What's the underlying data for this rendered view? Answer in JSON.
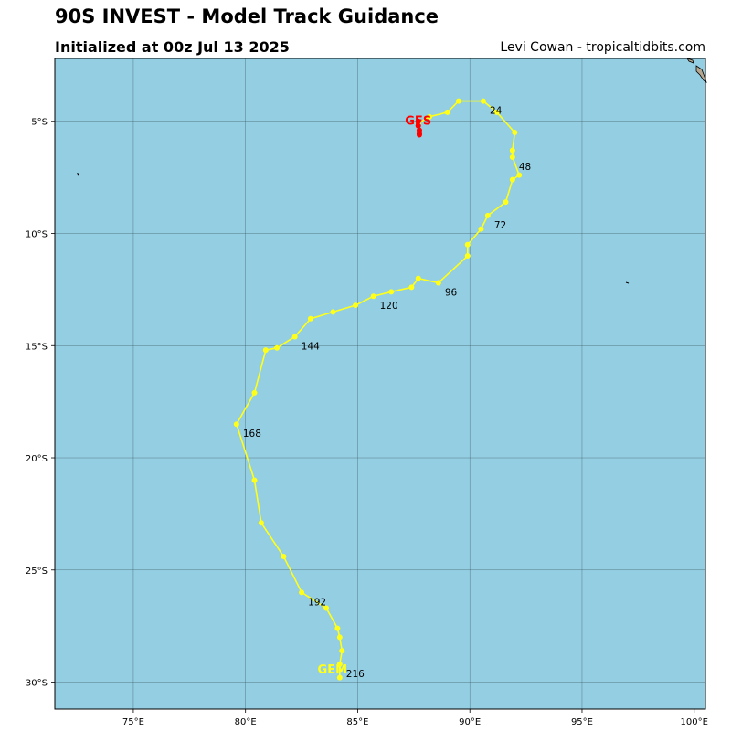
{
  "header": {
    "title": "90S INVEST - Model Track Guidance",
    "subtitle": "Initialized at 00z Jul 13 2025",
    "credit": "Levi Cowan - tropicaltidbits.com"
  },
  "colors": {
    "ocean": "#94cee2",
    "land": "#b5a78f",
    "grid": "#3a5560",
    "track": "#ffff19",
    "gfs": "#ff0000",
    "gem": "#ffff19"
  },
  "map": {
    "lon_range": [
      71.5,
      100.5
    ],
    "lat_range": [
      -31.2,
      -2.2
    ],
    "x_ticks": [
      {
        "value": 75,
        "label": "75°E"
      },
      {
        "value": 80,
        "label": "80°E"
      },
      {
        "value": 85,
        "label": "85°E"
      },
      {
        "value": 90,
        "label": "90°E"
      },
      {
        "value": 95,
        "label": "95°E"
      },
      {
        "value": 100,
        "label": "100°E"
      }
    ],
    "y_ticks": [
      {
        "value": -5,
        "label": "5°S"
      },
      {
        "value": -10,
        "label": "10°S"
      },
      {
        "value": -15,
        "label": "15°S"
      },
      {
        "value": -20,
        "label": "20°S"
      },
      {
        "value": -25,
        "label": "25°S"
      },
      {
        "value": -30,
        "label": "30°S"
      }
    ],
    "grid": true
  },
  "chart_data": {
    "type": "scatter",
    "title": "90S INVEST - Model Track Guidance",
    "xlabel": "",
    "ylabel": "",
    "xlim": [
      71.5,
      100.5
    ],
    "ylim": [
      -31.2,
      -2.2
    ],
    "series": [
      {
        "name": "GEM",
        "color": "#ffff19",
        "points": [
          [
            87.7,
            -5.1
          ],
          [
            88.2,
            -4.8
          ],
          [
            89.0,
            -4.6
          ],
          [
            89.5,
            -4.1
          ],
          [
            90.6,
            -4.1
          ],
          [
            91.2,
            -4.6
          ],
          [
            92.0,
            -5.5
          ],
          [
            91.9,
            -6.3
          ],
          [
            91.9,
            -6.6
          ],
          [
            92.2,
            -7.4
          ],
          [
            91.9,
            -7.6
          ],
          [
            91.6,
            -8.6
          ],
          [
            90.8,
            -9.2
          ],
          [
            90.5,
            -9.8
          ],
          [
            89.9,
            -10.5
          ],
          [
            89.9,
            -11.0
          ],
          [
            88.6,
            -12.2
          ],
          [
            87.7,
            -12.0
          ],
          [
            87.4,
            -12.4
          ],
          [
            86.5,
            -12.6
          ],
          [
            85.7,
            -12.8
          ],
          [
            84.9,
            -13.2
          ],
          [
            83.9,
            -13.5
          ],
          [
            82.9,
            -13.8
          ],
          [
            82.2,
            -14.6
          ],
          [
            81.4,
            -15.1
          ],
          [
            80.9,
            -15.2
          ],
          [
            80.4,
            -17.1
          ],
          [
            79.6,
            -18.5
          ],
          [
            80.4,
            -21.0
          ],
          [
            80.7,
            -22.9
          ],
          [
            81.7,
            -24.4
          ],
          [
            82.5,
            -26.0
          ],
          [
            83.6,
            -26.7
          ],
          [
            84.1,
            -27.6
          ],
          [
            84.2,
            -28.0
          ],
          [
            84.3,
            -28.6
          ],
          [
            84.2,
            -29.2
          ],
          [
            84.2,
            -29.8
          ]
        ],
        "hour_labels": [
          {
            "label": "24",
            "lon": 90.6,
            "lat": -4.1
          },
          {
            "label": "48",
            "lon": 91.9,
            "lat": -6.6
          },
          {
            "label": "72",
            "lon": 90.8,
            "lat": -9.2
          },
          {
            "label": "96",
            "lon": 88.6,
            "lat": -12.2
          },
          {
            "label": "120",
            "lon": 85.7,
            "lat": -12.8
          },
          {
            "label": "144",
            "lon": 82.2,
            "lat": -14.6
          },
          {
            "label": "168",
            "lon": 79.6,
            "lat": -18.5
          },
          {
            "label": "192",
            "lon": 82.5,
            "lat": -26.0
          },
          {
            "label": "216",
            "lon": 84.2,
            "lat": -29.2
          }
        ],
        "end_label": "GEM"
      },
      {
        "name": "GFS",
        "color": "#ff0000",
        "points": [
          [
            87.7,
            -5.0
          ],
          [
            87.7,
            -5.2
          ],
          [
            87.75,
            -5.4
          ],
          [
            87.75,
            -5.55
          ],
          [
            87.75,
            -5.6
          ]
        ],
        "end_label": "GFS"
      }
    ]
  }
}
